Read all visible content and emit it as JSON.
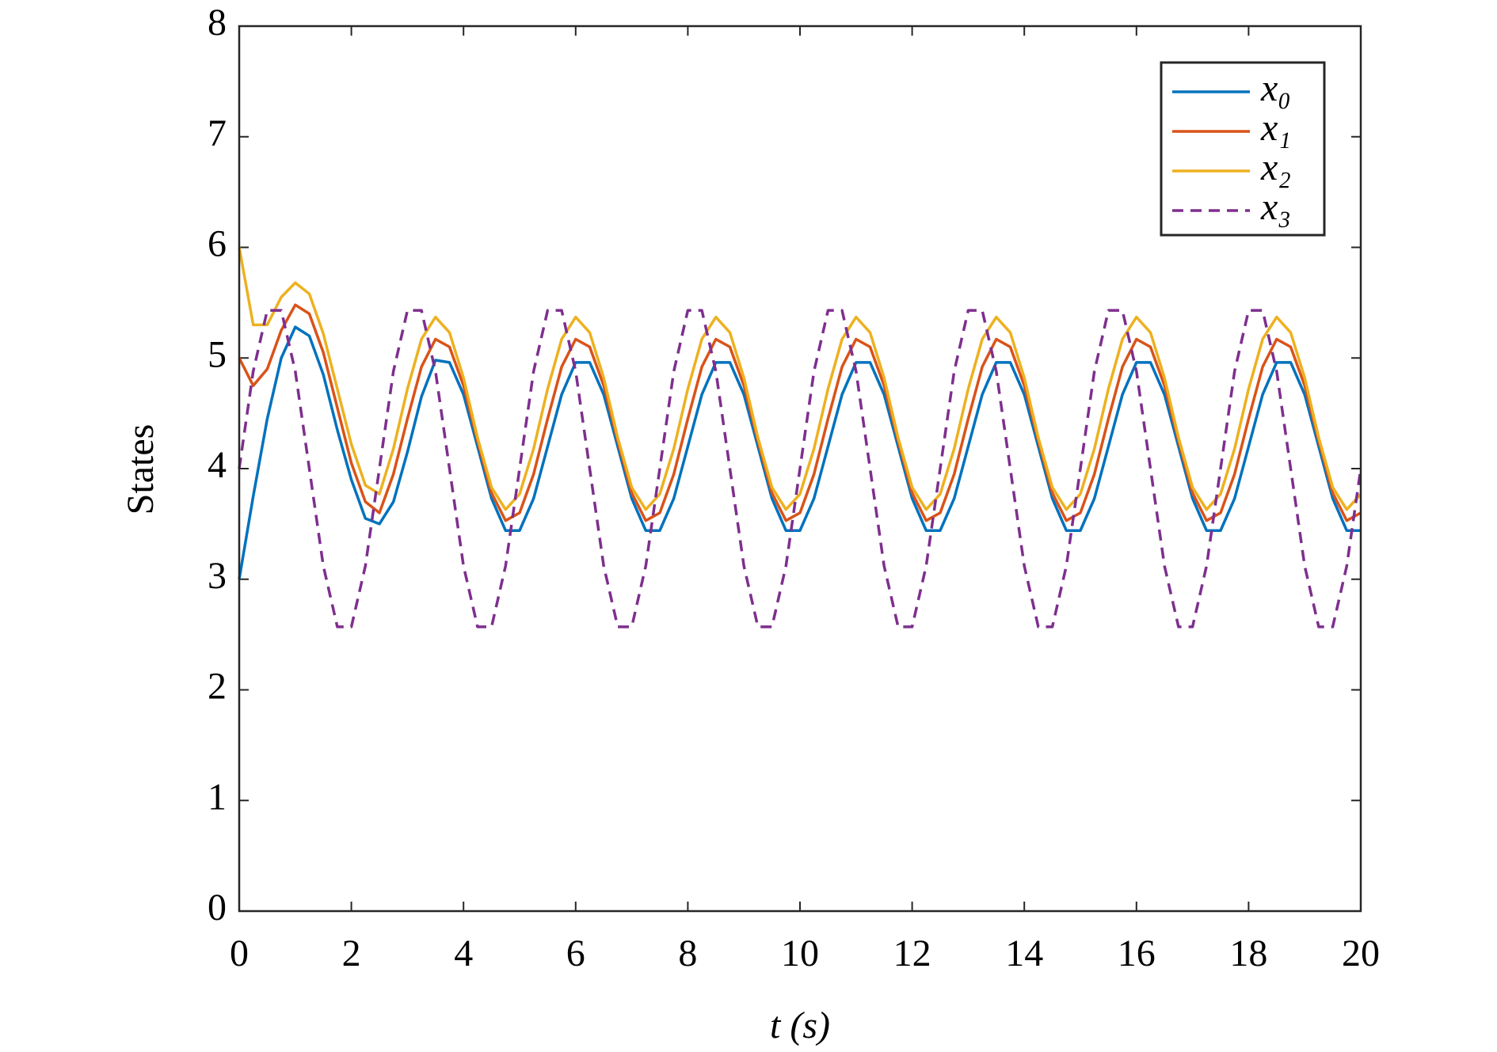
{
  "chart_data": {
    "type": "line",
    "xlabel": "t (s)",
    "ylabel": "States",
    "x": [
      0,
      0.25,
      0.5,
      0.75,
      1,
      1.25,
      1.5,
      1.75,
      2,
      2.25,
      2.5,
      2.75,
      3,
      3.25,
      3.5,
      3.75,
      4,
      4.25,
      4.5,
      4.75,
      5,
      5.25,
      5.5,
      5.75,
      6,
      6.25,
      6.5,
      6.75,
      7,
      7.25,
      7.5,
      7.75,
      8,
      8.25,
      8.5,
      8.75,
      9,
      9.25,
      9.5,
      9.75,
      10,
      10.25,
      10.5,
      10.75,
      11,
      11.25,
      11.5,
      11.75,
      12,
      12.25,
      12.5,
      12.75,
      13,
      13.25,
      13.5,
      13.75,
      14,
      14.25,
      14.5,
      14.75,
      15,
      15.25,
      15.5,
      15.75,
      16,
      16.25,
      16.5,
      16.75,
      17,
      17.25,
      17.5,
      17.75,
      18,
      18.25,
      18.5,
      18.75,
      19,
      19.25,
      19.5,
      19.75,
      20
    ],
    "series": [
      {
        "name": "x₀",
        "color": "#0072BD",
        "linestyle": "solid",
        "values": [
          3,
          3.75,
          4.45,
          5.0,
          5.28,
          5.2,
          4.85,
          4.35,
          3.9,
          3.55,
          3.5,
          3.7,
          4.15,
          4.65,
          4.98,
          4.96,
          4.67,
          4.2,
          3.73,
          3.44,
          3.44,
          3.73,
          4.2,
          4.67,
          4.96,
          4.96,
          4.67,
          4.2,
          3.73,
          3.44,
          3.44,
          3.73,
          4.2,
          4.67,
          4.96,
          4.96,
          4.67,
          4.2,
          3.73,
          3.44,
          3.44,
          3.73,
          4.2,
          4.67,
          4.96,
          4.96,
          4.67,
          4.2,
          3.73,
          3.44,
          3.44,
          3.73,
          4.2,
          4.67,
          4.96,
          4.96,
          4.67,
          4.2,
          3.73,
          3.44,
          3.44,
          3.73,
          4.2,
          4.67,
          4.96,
          4.96,
          4.67,
          4.2,
          3.73,
          3.44,
          3.44,
          3.73,
          4.2,
          4.67,
          4.96,
          4.96,
          4.67,
          4.2,
          3.73,
          3.44,
          3.44
        ]
      },
      {
        "name": "x₁",
        "color": "#D95319",
        "linestyle": "solid",
        "values": [
          5.0,
          4.75,
          4.9,
          5.25,
          5.48,
          5.4,
          5.05,
          4.55,
          4.05,
          3.7,
          3.6,
          3.95,
          4.45,
          4.92,
          5.17,
          5.1,
          4.75,
          4.25,
          3.78,
          3.53,
          3.6,
          3.95,
          4.45,
          4.92,
          5.17,
          5.1,
          4.75,
          4.25,
          3.78,
          3.53,
          3.6,
          3.95,
          4.45,
          4.92,
          5.17,
          5.1,
          4.75,
          4.25,
          3.78,
          3.53,
          3.6,
          3.95,
          4.45,
          4.92,
          5.17,
          5.1,
          4.75,
          4.25,
          3.78,
          3.53,
          3.6,
          3.95,
          4.45,
          4.92,
          5.17,
          5.1,
          4.75,
          4.25,
          3.78,
          3.53,
          3.6,
          3.95,
          4.45,
          4.92,
          5.17,
          5.1,
          4.75,
          4.25,
          3.78,
          3.53,
          3.6,
          3.95,
          4.45,
          4.92,
          5.17,
          5.1,
          4.75,
          4.25,
          3.78,
          3.53,
          3.6
        ]
      },
      {
        "name": "x₂",
        "color": "#EDB120",
        "linestyle": "solid",
        "values": [
          6.0,
          5.3,
          5.3,
          5.55,
          5.68,
          5.58,
          5.22,
          4.72,
          4.22,
          3.85,
          3.77,
          4.18,
          4.72,
          5.17,
          5.37,
          5.23,
          4.82,
          4.28,
          3.83,
          3.63,
          3.77,
          4.18,
          4.72,
          5.17,
          5.37,
          5.23,
          4.82,
          4.28,
          3.83,
          3.63,
          3.77,
          4.18,
          4.72,
          5.17,
          5.37,
          5.23,
          4.82,
          4.28,
          3.83,
          3.63,
          3.77,
          4.18,
          4.72,
          5.17,
          5.37,
          5.23,
          4.82,
          4.28,
          3.83,
          3.63,
          3.77,
          4.18,
          4.72,
          5.17,
          5.37,
          5.23,
          4.82,
          4.28,
          3.83,
          3.63,
          3.77,
          4.18,
          4.72,
          5.17,
          5.37,
          5.23,
          4.82,
          4.28,
          3.83,
          3.63,
          3.77,
          4.18,
          4.72,
          5.17,
          5.37,
          5.23,
          4.82,
          4.28,
          3.83,
          3.63,
          3.77
        ]
      },
      {
        "name": "x₃",
        "color": "#7E2F8E",
        "linestyle": "dashed",
        "values": [
          4,
          4.88,
          5.43,
          5.43,
          4.88,
          4,
          3.12,
          2.57,
          2.57,
          3.12,
          4,
          4.88,
          5.43,
          5.43,
          4.88,
          4,
          3.12,
          2.57,
          2.57,
          3.12,
          4,
          4.88,
          5.43,
          5.43,
          4.88,
          4,
          3.12,
          2.57,
          2.57,
          3.12,
          4,
          4.88,
          5.43,
          5.43,
          4.88,
          4,
          3.12,
          2.57,
          2.57,
          3.12,
          4,
          4.88,
          5.43,
          5.43,
          4.88,
          4,
          3.12,
          2.57,
          2.57,
          3.12,
          4,
          4.88,
          5.43,
          5.43,
          4.88,
          4,
          3.12,
          2.57,
          2.57,
          3.12,
          4,
          4.88,
          5.43,
          5.43,
          4.88,
          4,
          3.12,
          2.57,
          2.57,
          3.12,
          4,
          4.88,
          5.43,
          5.43,
          4.88,
          4,
          3.12,
          2.57,
          2.57,
          3.12,
          4
        ]
      }
    ],
    "xlim": [
      0,
      20
    ],
    "xticks": [
      0,
      2,
      4,
      6,
      8,
      10,
      12,
      14,
      16,
      18,
      20
    ],
    "ylim": [
      0,
      8
    ],
    "yticks": [
      0,
      1,
      2,
      3,
      4,
      5,
      6,
      7,
      8
    ],
    "grid": false,
    "legend": "upper right"
  }
}
